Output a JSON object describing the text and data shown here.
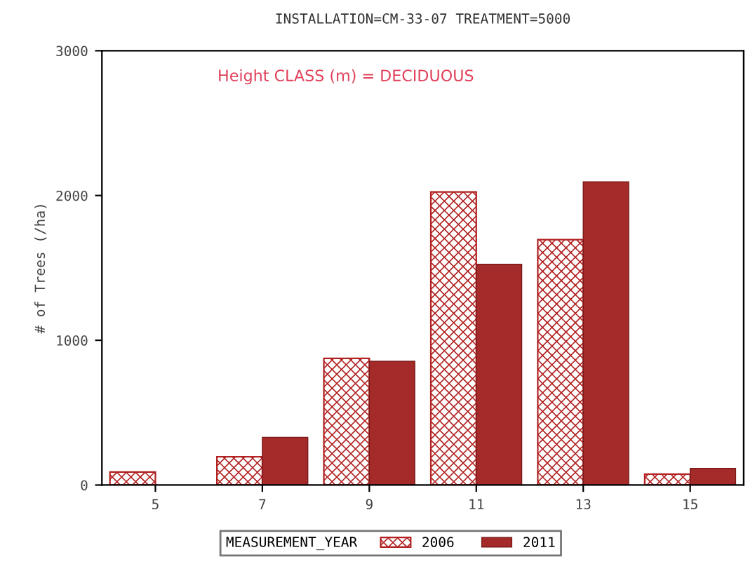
{
  "chart_data": {
    "type": "bar",
    "title": "INSTALLATION=CM-33-07 TREATMENT=5000",
    "ylabel": "# of Trees (/ha)",
    "legend_title": "MEASUREMENT_YEAR",
    "annotations": [
      "Height CLASS (m) = DECIDUOUS"
    ],
    "categories": [
      "5",
      "7",
      "9",
      "11",
      "13",
      "15"
    ],
    "series": [
      {
        "name": "2006",
        "color": "#b22222",
        "values": [
          90,
          195,
          875,
          2025,
          1695,
          75
        ]
      },
      {
        "name": "2011",
        "color": "#a52a2a",
        "values": [
          null,
          330,
          855,
          1525,
          2095,
          115
        ]
      }
    ],
    "ylim": [
      0,
      3000
    ],
    "yticks": [
      0,
      1000,
      2000,
      3000
    ],
    "grid": false,
    "legend": "bottom"
  }
}
